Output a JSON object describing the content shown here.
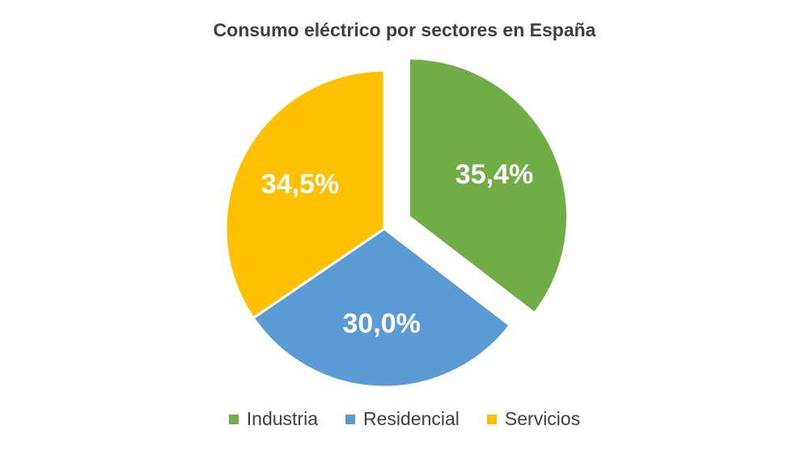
{
  "chart_data": {
    "type": "pie",
    "title": "Consumo eléctrico por sectores en España",
    "categories": [
      "Industria",
      "Residencial",
      "Servicios"
    ],
    "values": [
      35.4,
      30.0,
      34.5
    ],
    "value_labels": [
      "35,4%",
      "30,0%",
      "34,5%"
    ],
    "colors": [
      "#70AD47",
      "#5B9BD5",
      "#FFC000"
    ],
    "exploded": [
      "Industria"
    ],
    "legend": "bottom"
  }
}
